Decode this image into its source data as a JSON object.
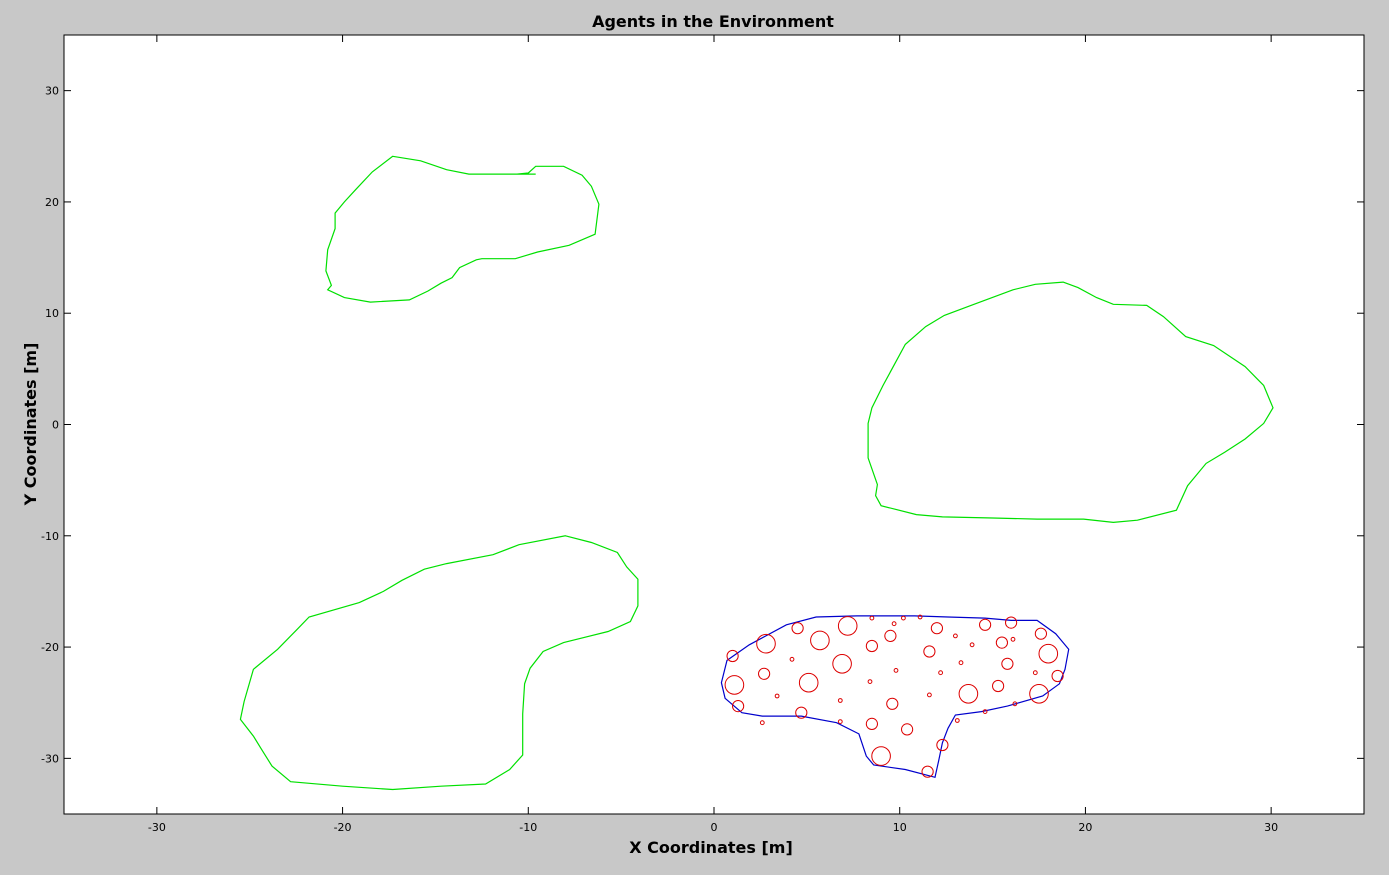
{
  "chart_data": {
    "type": "scatter",
    "title": "Agents in the Environment",
    "xlabel": "X Coordinates [m]",
    "ylabel": "Y Coordinates [m]",
    "xlim": [
      -35,
      35
    ],
    "ylim": [
      -35,
      35
    ],
    "xticks": [
      -30,
      -20,
      -10,
      0,
      10,
      20,
      30
    ],
    "yticks": [
      -30,
      -20,
      -10,
      0,
      10,
      20,
      30
    ],
    "grid": false,
    "colors": {
      "region_outline": "#00e000",
      "agent_region_outline": "#0000cc",
      "agents": "#dd0000"
    },
    "regions": [
      {
        "id": "region-top-left",
        "color": "#00e000",
        "points": [
          [
            -17.3,
            24.1
          ],
          [
            -15.8,
            23.7
          ],
          [
            -14.4,
            22.9
          ],
          [
            -13.2,
            22.5
          ],
          [
            -11.2,
            22.5
          ],
          [
            -9.6,
            22.5
          ],
          [
            -10.6,
            22.5
          ],
          [
            -10.0,
            22.6
          ],
          [
            -9.6,
            23.2
          ],
          [
            -8.1,
            23.2
          ],
          [
            -7.1,
            22.4
          ],
          [
            -6.6,
            21.4
          ],
          [
            -6.2,
            19.8
          ],
          [
            -6.4,
            17.1
          ],
          [
            -7.8,
            16.1
          ],
          [
            -9.5,
            15.5
          ],
          [
            -10.7,
            14.9
          ],
          [
            -12.5,
            14.9
          ],
          [
            -12.8,
            14.8
          ],
          [
            -13.7,
            14.1
          ],
          [
            -14.1,
            13.2
          ],
          [
            -14.7,
            12.7
          ],
          [
            -15.4,
            12.0
          ],
          [
            -16.4,
            11.2
          ],
          [
            -18.5,
            11.0
          ],
          [
            -19.9,
            11.4
          ],
          [
            -20.8,
            12.1
          ],
          [
            -20.6,
            12.5
          ],
          [
            -20.9,
            13.8
          ],
          [
            -20.8,
            15.7
          ],
          [
            -20.4,
            17.6
          ],
          [
            -20.4,
            19.0
          ],
          [
            -19.9,
            20.0
          ],
          [
            -19.3,
            21.1
          ],
          [
            -18.4,
            22.7
          ],
          [
            -17.3,
            24.1
          ]
        ]
      },
      {
        "id": "region-right",
        "color": "#00e000",
        "points": [
          [
            18.8,
            12.8
          ],
          [
            19.6,
            12.3
          ],
          [
            20.6,
            11.4
          ],
          [
            21.5,
            10.8
          ],
          [
            23.3,
            10.7
          ],
          [
            24.2,
            9.7
          ],
          [
            25.4,
            7.9
          ],
          [
            26.9,
            7.1
          ],
          [
            28.6,
            5.2
          ],
          [
            29.6,
            3.5
          ],
          [
            30.1,
            1.5
          ],
          [
            29.6,
            0.1
          ],
          [
            28.6,
            -1.3
          ],
          [
            27.5,
            -2.5
          ],
          [
            26.5,
            -3.5
          ],
          [
            25.5,
            -5.5
          ],
          [
            24.9,
            -7.7
          ],
          [
            22.8,
            -8.6
          ],
          [
            21.5,
            -8.8
          ],
          [
            19.9,
            -8.5
          ],
          [
            17.4,
            -8.5
          ],
          [
            15.0,
            -8.4
          ],
          [
            12.3,
            -8.3
          ],
          [
            10.9,
            -8.1
          ],
          [
            9.0,
            -7.3
          ],
          [
            8.7,
            -6.4
          ],
          [
            8.8,
            -5.4
          ],
          [
            8.3,
            -3.0
          ],
          [
            8.3,
            0.1
          ],
          [
            8.5,
            1.5
          ],
          [
            9.1,
            3.5
          ],
          [
            10.3,
            7.2
          ],
          [
            11.4,
            8.8
          ],
          [
            12.4,
            9.8
          ],
          [
            14.0,
            10.8
          ],
          [
            16.1,
            12.1
          ],
          [
            17.3,
            12.6
          ],
          [
            18.8,
            12.8
          ]
        ]
      },
      {
        "id": "region-bottom-left",
        "color": "#00e000",
        "points": [
          [
            -8.0,
            -10.0
          ],
          [
            -6.6,
            -10.6
          ],
          [
            -5.2,
            -11.5
          ],
          [
            -4.7,
            -12.8
          ],
          [
            -4.1,
            -13.9
          ],
          [
            -4.1,
            -16.3
          ],
          [
            -4.5,
            -17.7
          ],
          [
            -5.7,
            -18.6
          ],
          [
            -8.1,
            -19.6
          ],
          [
            -9.2,
            -20.4
          ],
          [
            -9.9,
            -21.9
          ],
          [
            -10.2,
            -23.3
          ],
          [
            -10.3,
            -26.0
          ],
          [
            -10.3,
            -29.7
          ],
          [
            -11.0,
            -31.0
          ],
          [
            -12.3,
            -32.3
          ],
          [
            -14.7,
            -32.5
          ],
          [
            -17.3,
            -32.8
          ],
          [
            -20.0,
            -32.5
          ],
          [
            -22.8,
            -32.1
          ],
          [
            -23.8,
            -30.7
          ],
          [
            -24.4,
            -29.1
          ],
          [
            -24.8,
            -28.0
          ],
          [
            -25.5,
            -26.5
          ],
          [
            -25.3,
            -24.9
          ],
          [
            -24.8,
            -22.0
          ],
          [
            -23.5,
            -20.2
          ],
          [
            -22.5,
            -18.5
          ],
          [
            -21.8,
            -17.3
          ],
          [
            -19.1,
            -16.0
          ],
          [
            -17.8,
            -15.0
          ],
          [
            -16.8,
            -14.0
          ],
          [
            -15.6,
            -13.0
          ],
          [
            -14.4,
            -12.5
          ],
          [
            -11.9,
            -11.7
          ],
          [
            -10.5,
            -10.8
          ],
          [
            -8.0,
            -10.0
          ]
        ]
      }
    ],
    "agent_region": {
      "id": "region-agents",
      "color": "#0000cc",
      "points": [
        [
          5.5,
          -17.3
        ],
        [
          7.7,
          -17.2
        ],
        [
          10.8,
          -17.2
        ],
        [
          12.6,
          -17.3
        ],
        [
          14.6,
          -17.4
        ],
        [
          16.0,
          -17.6
        ],
        [
          17.4,
          -17.6
        ],
        [
          18.4,
          -18.8
        ],
        [
          19.1,
          -20.2
        ],
        [
          18.9,
          -22.0
        ],
        [
          18.6,
          -23.3
        ],
        [
          17.7,
          -24.4
        ],
        [
          15.8,
          -25.3
        ],
        [
          14.4,
          -25.8
        ],
        [
          13.0,
          -26.1
        ],
        [
          12.6,
          -27.3
        ],
        [
          12.3,
          -28.6
        ],
        [
          12.1,
          -30.2
        ],
        [
          11.9,
          -31.7
        ],
        [
          10.3,
          -31.0
        ],
        [
          8.6,
          -30.6
        ],
        [
          8.2,
          -29.8
        ],
        [
          7.8,
          -27.8
        ],
        [
          6.6,
          -26.8
        ],
        [
          4.7,
          -26.2
        ],
        [
          2.6,
          -26.2
        ],
        [
          1.5,
          -25.9
        ],
        [
          0.6,
          -24.6
        ],
        [
          0.4,
          -23.2
        ],
        [
          0.7,
          -21.2
        ],
        [
          1.9,
          -19.8
        ],
        [
          3.9,
          -18.0
        ],
        [
          5.5,
          -17.3
        ]
      ]
    },
    "agents": [
      [
        1.0,
        -20.8,
        0.3
      ],
      [
        2.8,
        -19.7,
        0.5
      ],
      [
        4.5,
        -18.3,
        0.3
      ],
      [
        5.7,
        -19.4,
        0.5
      ],
      [
        7.2,
        -18.1,
        0.5
      ],
      [
        8.5,
        -17.4,
        0.1
      ],
      [
        9.7,
        -17.9,
        0.1
      ],
      [
        10.2,
        -17.4,
        0.1
      ],
      [
        11.1,
        -17.3,
        0.1
      ],
      [
        12.0,
        -18.3,
        0.3
      ],
      [
        14.6,
        -18.0,
        0.3
      ],
      [
        16.0,
        -17.8,
        0.3
      ],
      [
        17.6,
        -18.8,
        0.3
      ],
      [
        9.5,
        -19.0,
        0.3
      ],
      [
        8.5,
        -19.9,
        0.3
      ],
      [
        11.6,
        -20.4,
        0.3
      ],
      [
        13.0,
        -19.0,
        0.1
      ],
      [
        13.9,
        -19.8,
        0.1
      ],
      [
        15.5,
        -19.6,
        0.3
      ],
      [
        16.1,
        -19.3,
        0.1
      ],
      [
        18.0,
        -20.6,
        0.5
      ],
      [
        4.2,
        -21.1,
        0.1
      ],
      [
        6.9,
        -21.5,
        0.5
      ],
      [
        9.8,
        -22.1,
        0.1
      ],
      [
        12.2,
        -22.3,
        0.1
      ],
      [
        13.3,
        -21.4,
        0.1
      ],
      [
        15.8,
        -21.5,
        0.3
      ],
      [
        17.3,
        -22.3,
        0.1
      ],
      [
        18.5,
        -22.6,
        0.3
      ],
      [
        2.7,
        -22.4,
        0.3
      ],
      [
        1.1,
        -23.4,
        0.5
      ],
      [
        3.4,
        -24.4,
        0.1
      ],
      [
        5.1,
        -23.2,
        0.5
      ],
      [
        8.4,
        -23.1,
        0.1
      ],
      [
        11.6,
        -24.3,
        0.1
      ],
      [
        13.7,
        -24.2,
        0.5
      ],
      [
        15.3,
        -23.5,
        0.3
      ],
      [
        17.5,
        -24.2,
        0.5
      ],
      [
        16.2,
        -25.1,
        0.1
      ],
      [
        14.6,
        -25.8,
        0.1
      ],
      [
        1.3,
        -25.3,
        0.3
      ],
      [
        4.7,
        -25.9,
        0.3
      ],
      [
        6.8,
        -24.8,
        0.1
      ],
      [
        9.6,
        -25.1,
        0.3
      ],
      [
        13.1,
        -26.6,
        0.1
      ],
      [
        2.6,
        -26.8,
        0.1
      ],
      [
        6.8,
        -26.7,
        0.1
      ],
      [
        8.5,
        -26.9,
        0.3
      ],
      [
        10.4,
        -27.4,
        0.3
      ],
      [
        12.3,
        -28.8,
        0.3
      ],
      [
        9.0,
        -29.8,
        0.5
      ],
      [
        11.5,
        -31.2,
        0.3
      ]
    ]
  }
}
